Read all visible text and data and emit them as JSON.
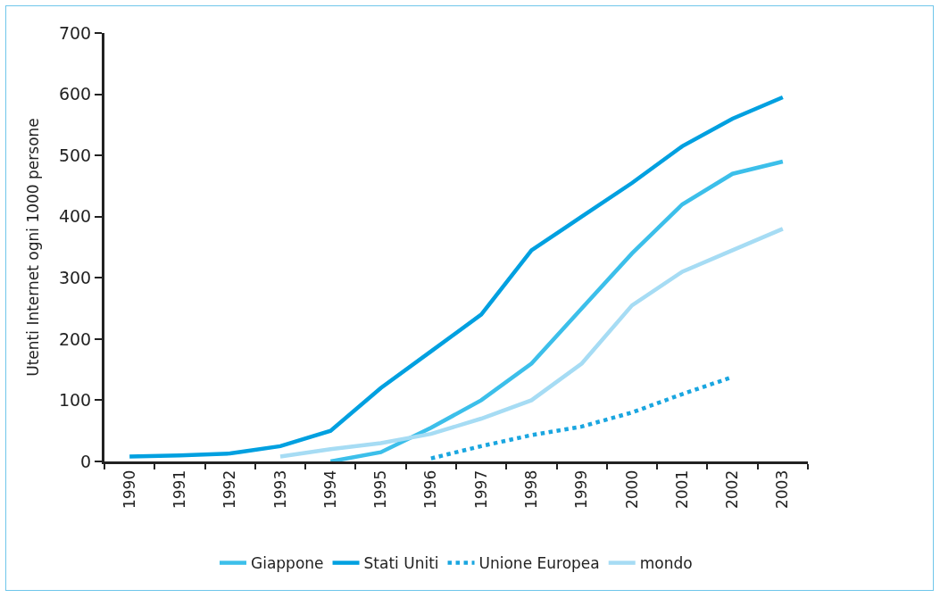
{
  "chart_data": {
    "type": "line",
    "ylabel": "Utenti Internet ogni 1000 persone",
    "categories": [
      "1990",
      "1991",
      "1992",
      "1993",
      "1994",
      "1995",
      "1996",
      "1997",
      "1998",
      "1999",
      "2000",
      "2001",
      "2002",
      "2003"
    ],
    "series": [
      {
        "name": "Giappone",
        "color": "#3cbfea",
        "values": [
          null,
          null,
          null,
          null,
          0,
          15,
          55,
          100,
          160,
          250,
          340,
          420,
          470,
          490
        ]
      },
      {
        "name": "Stati Uniti",
        "color": "#00a0e0",
        "values": [
          8,
          10,
          13,
          25,
          50,
          120,
          180,
          240,
          345,
          400,
          455,
          515,
          560,
          595
        ]
      },
      {
        "name": "Unione Europea",
        "color": "#1aa6e0",
        "line_style": "dotted",
        "values": [
          null,
          null,
          null,
          null,
          null,
          null,
          5,
          25,
          43,
          57,
          80,
          110,
          138,
          null
        ]
      },
      {
        "name": "mondo",
        "color": "#a6dcf4",
        "values": [
          null,
          null,
          null,
          8,
          20,
          30,
          45,
          70,
          100,
          160,
          255,
          310,
          345,
          380
        ]
      }
    ],
    "ylim": [
      0,
      700
    ],
    "yticks": [
      0,
      100,
      200,
      300,
      400,
      500,
      600,
      700
    ],
    "grid": false,
    "legend": "bottom",
    "line_style": "solid",
    "marker": "none"
  }
}
